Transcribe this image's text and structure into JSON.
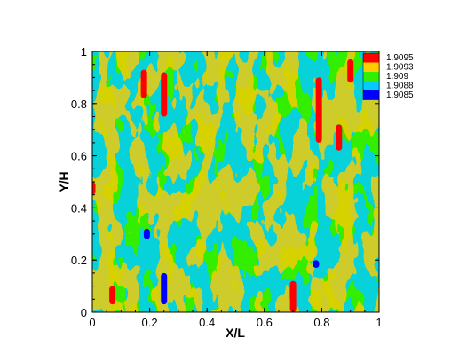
{
  "chart_data": {
    "type": "heatmap",
    "title": "",
    "xlabel": "X/L",
    "ylabel": "Y/H",
    "xlim": [
      0,
      1
    ],
    "ylim": [
      0,
      1
    ],
    "xticks": [
      "0",
      "0.2",
      "0.4",
      "0.6",
      "0.8",
      "1"
    ],
    "yticks": [
      "0",
      "0.2",
      "0.4",
      "0.6",
      "0.8",
      "1"
    ],
    "grid": false,
    "legend_position": "top-right",
    "field_range": [
      1.9085,
      1.9095
    ],
    "background_level": 1.909,
    "legend": [
      {
        "label": "1.9095",
        "color": "#ff0000"
      },
      {
        "label": "1.9093",
        "color": "#ffcc00"
      },
      {
        "label": "1.909",
        "color": "#33ee00"
      },
      {
        "label": "1.9088",
        "color": "#00ccff"
      },
      {
        "label": "1.9085",
        "color": "#0000ff"
      }
    ],
    "features": [
      {
        "level": 1.9095,
        "x": 0.18,
        "y": [
          0.82,
          0.93
        ]
      },
      {
        "level": 1.9095,
        "x": 0.25,
        "y": [
          0.75,
          0.92
        ]
      },
      {
        "level": 1.9095,
        "x": 0.79,
        "y": [
          0.65,
          0.9
        ]
      },
      {
        "level": 1.9095,
        "x": 0.86,
        "y": [
          0.62,
          0.72
        ]
      },
      {
        "level": 1.9095,
        "x": 0.9,
        "y": [
          0.88,
          0.97
        ]
      },
      {
        "level": 1.9095,
        "x": 0.7,
        "y": [
          0.0,
          0.12
        ]
      },
      {
        "level": 1.9095,
        "x": 0.07,
        "y": [
          0.03,
          0.1
        ]
      },
      {
        "level": 1.9095,
        "x": 0.0,
        "y": [
          0.45,
          0.5
        ]
      },
      {
        "level": 1.9085,
        "x": 0.25,
        "y": [
          0.03,
          0.15
        ]
      },
      {
        "level": 1.9085,
        "x": 0.78,
        "y": [
          0.17,
          0.2
        ]
      },
      {
        "level": 1.9085,
        "x": 0.19,
        "y": [
          0.28,
          0.32
        ]
      }
    ]
  }
}
